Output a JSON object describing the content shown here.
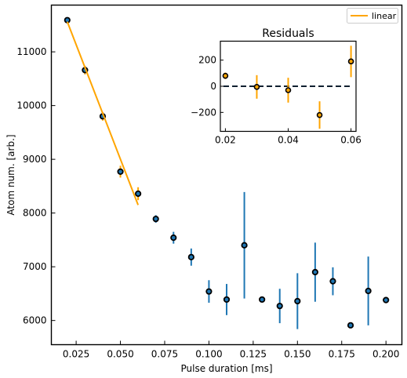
{
  "chart_data": [
    {
      "type": "scatter",
      "xlabel": "Pulse duration [ms]",
      "ylabel": "Atom num. [arb.]",
      "xlim": [
        0.011,
        0.209
      ],
      "ylim": [
        5550,
        11870
      ],
      "xticks": [
        0.025,
        0.05,
        0.075,
        0.1,
        0.125,
        0.15,
        0.175,
        0.2
      ],
      "xtick_labels": [
        "0.025",
        "0.050",
        "0.075",
        "0.100",
        "0.125",
        "0.150",
        "0.175",
        "0.200"
      ],
      "yticks": [
        6000,
        7000,
        8000,
        9000,
        10000,
        11000
      ],
      "ytick_labels": [
        "6000",
        "7000",
        "8000",
        "9000",
        "10000",
        "11000"
      ],
      "legend": {
        "position": "top-right",
        "entries": [
          {
            "label": "linear",
            "color": "#FFA500"
          }
        ]
      },
      "colors": {
        "marker_fill": "#1F77B4",
        "errorbar_fit_range": "#FFA500",
        "errorbar_other": "#1F77B4",
        "marker_edge": "#000000"
      },
      "grid": false,
      "series": [
        {
          "kind": "errorbar",
          "x": [
            0.02,
            0.03,
            0.04,
            0.05,
            0.06,
            0.07,
            0.08,
            0.09,
            0.1,
            0.11,
            0.12,
            0.13,
            0.14,
            0.15,
            0.16,
            0.17,
            0.18,
            0.19,
            0.2
          ],
          "y": [
            11590,
            10660,
            9800,
            8770,
            8360,
            7890,
            7540,
            7180,
            6540,
            6390,
            7400,
            6390,
            6270,
            6360,
            6900,
            6730,
            5910,
            6550,
            6380
          ],
          "yerr": [
            30,
            80,
            80,
            110,
            120,
            70,
            110,
            160,
            210,
            290,
            990,
            50,
            320,
            520,
            550,
            260,
            40,
            640,
            40
          ],
          "fit_range_points": 5
        },
        {
          "kind": "line",
          "name": "linear",
          "x": [
            0.02,
            0.06
          ],
          "y": [
            11560,
            8150
          ]
        }
      ]
    },
    {
      "type": "scatter",
      "title": "Residuals",
      "xlim": [
        0.0184,
        0.0616
      ],
      "ylim": [
        -345,
        345
      ],
      "xticks": [
        0.02,
        0.04,
        0.06
      ],
      "xtick_labels": [
        "0.02",
        "0.04",
        "0.06"
      ],
      "yticks": [
        -200,
        0,
        200
      ],
      "ytick_labels": [
        "−200",
        "0",
        "200"
      ],
      "zero_line": true,
      "grid": false,
      "series": [
        {
          "kind": "errorbar",
          "x": [
            0.02,
            0.03,
            0.04,
            0.05,
            0.06
          ],
          "y": [
            80,
            -5,
            -30,
            -220,
            190
          ],
          "yerr": [
            25,
            90,
            95,
            105,
            120
          ]
        }
      ]
    }
  ]
}
